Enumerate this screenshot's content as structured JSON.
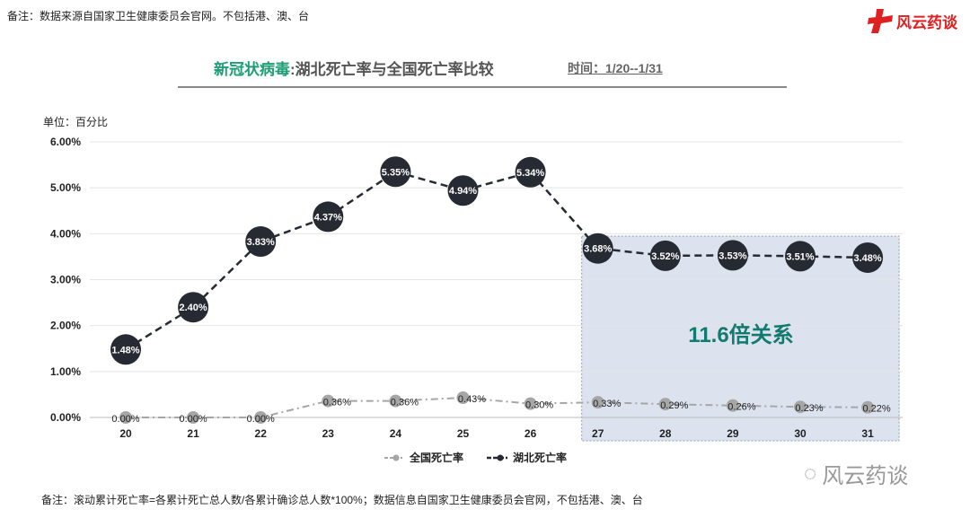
{
  "header": {
    "note": "备注：数据来源自国家卫生健康委员会官网。不包括港、澳、台",
    "logo_text": "风云药谈",
    "title_green": "新冠状病毒",
    "title_rest": ":湖北死亡率与全国死亡率比较",
    "time": "时间：1/20--1/31",
    "unit": "单位：百分比"
  },
  "footer": {
    "note": "备注：滚动累计死亡率=各累计死亡总人数/各累计确诊总人数*100%；数据信息自国家卫生健康委员会官网，不包括港、澳、台",
    "watermark": "风云药谈"
  },
  "chart_data": {
    "type": "line",
    "title": "新冠状病毒:湖北死亡率与全国死亡率比较",
    "categories": [
      "20",
      "21",
      "22",
      "23",
      "24",
      "25",
      "26",
      "27",
      "28",
      "29",
      "30",
      "31"
    ],
    "yticks": [
      "0.00%",
      "1.00%",
      "2.00%",
      "3.00%",
      "4.00%",
      "5.00%",
      "6.00%"
    ],
    "ylim": [
      0,
      6
    ],
    "series": [
      {
        "name": "全国死亡率",
        "color": "#a6a6a6",
        "values": [
          0,
          0,
          0,
          0.36,
          0.36,
          0.43,
          0.3,
          0.33,
          0.29,
          0.26,
          0.23,
          0.22
        ],
        "labels": [
          "0.00%",
          "0.00%",
          "0.00%",
          "0.36%",
          "0.36%",
          "0.43%",
          "0.30%",
          "0.33%",
          "0.29%",
          "0.26%",
          "0.23%",
          "0.22%"
        ]
      },
      {
        "name": "湖北死亡率",
        "color": "#262a33",
        "values": [
          1.48,
          2.4,
          3.83,
          4.37,
          5.35,
          4.94,
          5.34,
          3.68,
          3.52,
          3.53,
          3.51,
          3.48
        ],
        "labels": [
          "1.48%",
          "2.40%",
          "3.83%",
          "4.37%",
          "5.35%",
          "4.94%",
          "5.34%",
          "3.68%",
          "3.52%",
          "3.53%",
          "3.51%",
          "3.48%"
        ]
      }
    ],
    "annotation": "11.6倍关系",
    "highlight_range": [
      "27",
      "31"
    ]
  }
}
